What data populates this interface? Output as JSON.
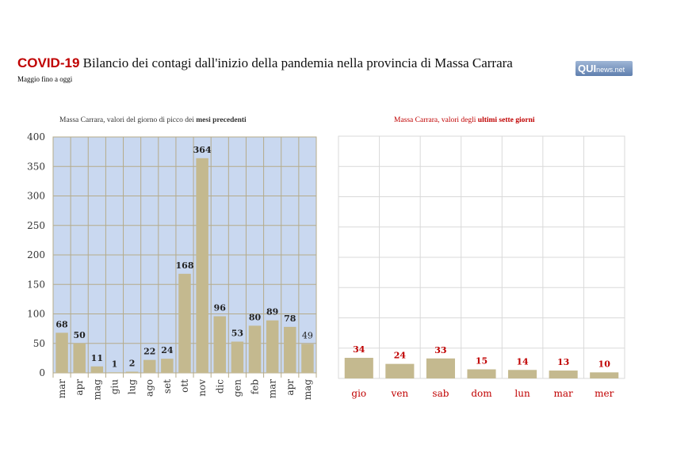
{
  "header": {
    "title_highlight": "COVID-19",
    "title": "Bilancio dei contagi dall'inizio della pandemia nella provincia di Massa Carrara",
    "subtitle": "Maggio fino a oggi",
    "logo_main": "QUI",
    "logo_sub": "news.net"
  },
  "colors": {
    "bar": "#c4b98f",
    "left_bg": "#c9d8f0",
    "red": "#c00000"
  },
  "chart_data": [
    {
      "type": "bar",
      "title_prefix": "Massa Carrara, valori del giorno di picco dei ",
      "title_bold": "mesi precedenti",
      "categories": [
        "mar",
        "apr",
        "mag",
        "giu",
        "lug",
        "ago",
        "set",
        "ott",
        "nov",
        "dic",
        "gen",
        "feb",
        "mar",
        "apr",
        "mag"
      ],
      "values": [
        68,
        50,
        11,
        1,
        2,
        22,
        24,
        168,
        364,
        96,
        53,
        80,
        89,
        78,
        49
      ],
      "yticks": [
        "0",
        "50",
        "100",
        "150",
        "200",
        "250",
        "300",
        "350",
        "400"
      ],
      "ylim": [
        0,
        400
      ],
      "grid": true
    },
    {
      "type": "bar",
      "title_prefix": "Massa Carrara, valori degli ",
      "title_bold": "ultimi sette giorni",
      "categories": [
        "gio",
        "ven",
        "sab",
        "dom",
        "lun",
        "mar",
        "mer"
      ],
      "values": [
        34,
        24,
        33,
        15,
        14,
        13,
        10
      ],
      "ylim": [
        0,
        400
      ],
      "grid": true
    }
  ]
}
